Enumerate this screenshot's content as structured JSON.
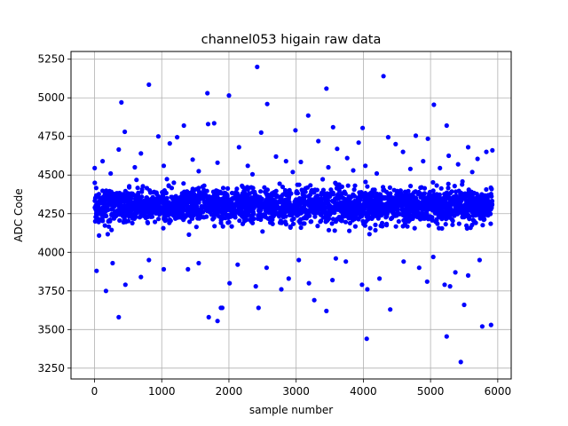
{
  "chart_data": {
    "type": "scatter",
    "title": "channel053 higain raw data",
    "xlabel": "sample number",
    "ylabel": "ADC Code",
    "xlim": [
      -350,
      6200
    ],
    "ylim": [
      3180,
      5300
    ],
    "xticks": [
      0,
      1000,
      2000,
      3000,
      4000,
      5000,
      6000
    ],
    "yticks": [
      3250,
      3500,
      3750,
      4000,
      4250,
      4500,
      4750,
      5000,
      5250
    ],
    "grid": true,
    "marker_color": "#0000ff",
    "series": [
      {
        "sample_count": 6000,
        "x_range": [
          0,
          5920
        ],
        "typical_band": [
          4150,
          4450
        ],
        "central_value": 4300,
        "points": [
          {
            "x": 2420,
            "y": 5200
          },
          {
            "x": 4300,
            "y": 5140
          },
          {
            "x": 810,
            "y": 5085
          },
          {
            "x": 3450,
            "y": 5060
          },
          {
            "x": 1680,
            "y": 5030
          },
          {
            "x": 2000,
            "y": 5015
          },
          {
            "x": 400,
            "y": 4970
          },
          {
            "x": 2570,
            "y": 4960
          },
          {
            "x": 5050,
            "y": 4955
          },
          {
            "x": 3180,
            "y": 4885
          },
          {
            "x": 1330,
            "y": 4820
          },
          {
            "x": 1780,
            "y": 4835
          },
          {
            "x": 1690,
            "y": 4830
          },
          {
            "x": 5240,
            "y": 4820
          },
          {
            "x": 3550,
            "y": 4810
          },
          {
            "x": 3990,
            "y": 4805
          },
          {
            "x": 2990,
            "y": 4790
          },
          {
            "x": 2480,
            "y": 4775
          },
          {
            "x": 450,
            "y": 4780
          },
          {
            "x": 950,
            "y": 4750
          },
          {
            "x": 4780,
            "y": 4755
          },
          {
            "x": 1230,
            "y": 4745
          },
          {
            "x": 4960,
            "y": 4735
          },
          {
            "x": 4370,
            "y": 4745
          },
          {
            "x": 3330,
            "y": 4720
          },
          {
            "x": 3930,
            "y": 4710
          },
          {
            "x": 1120,
            "y": 4705
          },
          {
            "x": 2150,
            "y": 4680
          },
          {
            "x": 360,
            "y": 4665
          },
          {
            "x": 5560,
            "y": 4680
          },
          {
            "x": 3610,
            "y": 4670
          },
          {
            "x": 5830,
            "y": 4650
          },
          {
            "x": 4480,
            "y": 4700
          },
          {
            "x": 5920,
            "y": 4660
          },
          {
            "x": 690,
            "y": 4640
          },
          {
            "x": 4590,
            "y": 4650
          },
          {
            "x": 2700,
            "y": 4620
          },
          {
            "x": 5270,
            "y": 4625
          },
          {
            "x": 3760,
            "y": 4610
          },
          {
            "x": 120,
            "y": 4590
          },
          {
            "x": 1460,
            "y": 4600
          },
          {
            "x": 5700,
            "y": 4605
          },
          {
            "x": 2850,
            "y": 4590
          },
          {
            "x": 3070,
            "y": 4585
          },
          {
            "x": 4890,
            "y": 4590
          },
          {
            "x": 1830,
            "y": 4580
          },
          {
            "x": 2280,
            "y": 4560
          },
          {
            "x": 4030,
            "y": 4560
          },
          {
            "x": 5410,
            "y": 4570
          },
          {
            "x": 2,
            "y": 4545
          },
          {
            "x": 600,
            "y": 4550
          },
          {
            "x": 1030,
            "y": 4560
          },
          {
            "x": 3480,
            "y": 4550
          },
          {
            "x": 4700,
            "y": 4540
          },
          {
            "x": 5140,
            "y": 4545
          },
          {
            "x": 2950,
            "y": 4520
          },
          {
            "x": 1550,
            "y": 4525
          },
          {
            "x": 3850,
            "y": 4530
          },
          {
            "x": 5620,
            "y": 4520
          },
          {
            "x": 240,
            "y": 4510
          },
          {
            "x": 2350,
            "y": 4505
          },
          {
            "x": 4200,
            "y": 4510
          },
          {
            "x": 360,
            "y": 3580
          },
          {
            "x": 1700,
            "y": 3580
          },
          {
            "x": 1830,
            "y": 3555
          },
          {
            "x": 1900,
            "y": 3640
          },
          {
            "x": 2440,
            "y": 3640
          },
          {
            "x": 3450,
            "y": 3620
          },
          {
            "x": 3270,
            "y": 3690
          },
          {
            "x": 4400,
            "y": 3630
          },
          {
            "x": 5500,
            "y": 3660
          },
          {
            "x": 5770,
            "y": 3520
          },
          {
            "x": 5900,
            "y": 3530
          },
          {
            "x": 4050,
            "y": 3440
          },
          {
            "x": 5240,
            "y": 3455
          },
          {
            "x": 5450,
            "y": 3290
          },
          {
            "x": 170,
            "y": 3750
          },
          {
            "x": 460,
            "y": 3790
          },
          {
            "x": 1880,
            "y": 3640
          },
          {
            "x": 2010,
            "y": 3800
          },
          {
            "x": 2400,
            "y": 3780
          },
          {
            "x": 2890,
            "y": 3830
          },
          {
            "x": 3190,
            "y": 3800
          },
          {
            "x": 3540,
            "y": 3820
          },
          {
            "x": 4060,
            "y": 3760
          },
          {
            "x": 3980,
            "y": 3790
          },
          {
            "x": 4950,
            "y": 3810
          },
          {
            "x": 5210,
            "y": 3790
          },
          {
            "x": 5290,
            "y": 3780
          },
          {
            "x": 5370,
            "y": 3870
          },
          {
            "x": 5560,
            "y": 3850
          },
          {
            "x": 30,
            "y": 3880
          },
          {
            "x": 690,
            "y": 3840
          },
          {
            "x": 1030,
            "y": 3890
          },
          {
            "x": 1390,
            "y": 3890
          },
          {
            "x": 1550,
            "y": 3930
          },
          {
            "x": 2780,
            "y": 3760
          },
          {
            "x": 2560,
            "y": 3900
          },
          {
            "x": 3590,
            "y": 3960
          },
          {
            "x": 4240,
            "y": 3830
          },
          {
            "x": 4830,
            "y": 3900
          },
          {
            "x": 5730,
            "y": 3950
          },
          {
            "x": 5040,
            "y": 3970
          },
          {
            "x": 270,
            "y": 3930
          },
          {
            "x": 810,
            "y": 3950
          },
          {
            "x": 2130,
            "y": 3920
          },
          {
            "x": 3040,
            "y": 3950
          },
          {
            "x": 3740,
            "y": 3940
          },
          {
            "x": 4600,
            "y": 3940
          }
        ]
      }
    ]
  }
}
